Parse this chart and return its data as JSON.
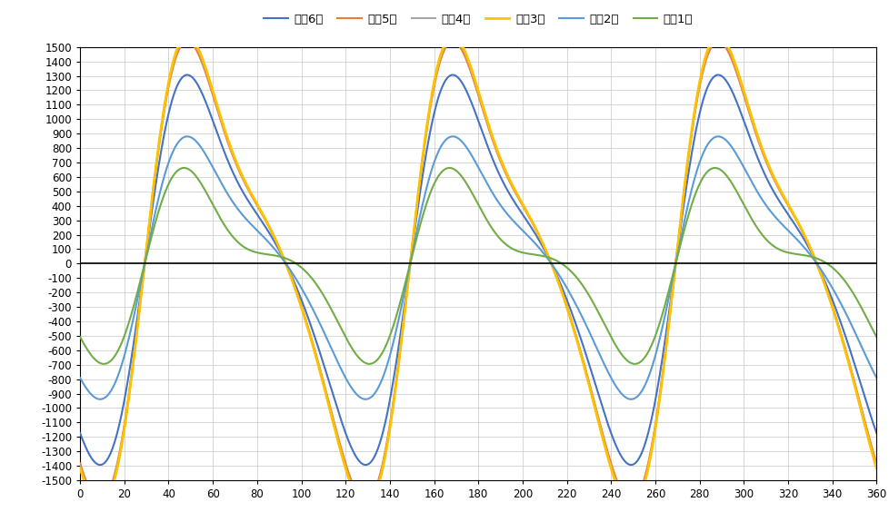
{
  "xlim": [
    0,
    360
  ],
  "ylim": [
    -1500,
    1500
  ],
  "yticks": [
    -1500,
    -1400,
    -1300,
    -1200,
    -1100,
    -1000,
    -900,
    -800,
    -700,
    -600,
    -500,
    -400,
    -300,
    -200,
    -100,
    0,
    100,
    200,
    300,
    400,
    500,
    600,
    700,
    800,
    900,
    1000,
    1100,
    1200,
    1300,
    1400,
    1500
  ],
  "xticks": [
    0,
    20,
    40,
    60,
    80,
    100,
    120,
    140,
    160,
    180,
    200,
    220,
    240,
    260,
    280,
    300,
    320,
    340,
    360
  ],
  "background_color": "#FFFFFF",
  "grid_color": "#D0D0D0",
  "series": [
    {
      "label": "引出6环",
      "color": "#4472C4",
      "lw": 1.5,
      "A": 1150,
      "k2": 0.38,
      "k3": 0.12,
      "k4": 0.05
    },
    {
      "label": "引出5环",
      "color": "#ED7D31",
      "lw": 1.5,
      "A": 1360,
      "k2": 0.38,
      "k3": 0.12,
      "k4": 0.05
    },
    {
      "label": "中间4环",
      "color": "#A5A5A5",
      "lw": 1.5,
      "A": 1375,
      "k2": 0.38,
      "k3": 0.12,
      "k4": 0.05
    },
    {
      "label": "中间3环",
      "color": "#FFC000",
      "lw": 2.0,
      "A": 1395,
      "k2": 0.38,
      "k3": 0.12,
      "k4": 0.05
    },
    {
      "label": "注入2环",
      "color": "#5B9BD5",
      "lw": 1.5,
      "A": 775,
      "k2": 0.38,
      "k3": 0.12,
      "k4": 0.05
    },
    {
      "label": "注入1环",
      "color": "#70AD47",
      "lw": 1.5,
      "A": 498,
      "k2": 0.38,
      "k3": 0.12,
      "k4": 0.05
    }
  ]
}
